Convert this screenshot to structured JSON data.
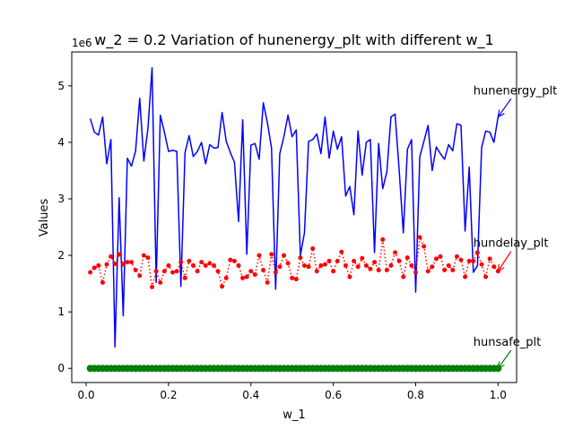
{
  "chart_data": {
    "type": "line",
    "title": "w_2 = 0.2 Variation of hunenergy_plt with different w_1",
    "xlabel": "w_1",
    "ylabel": "Values",
    "scale_label": "1e6",
    "xlim": [
      -0.035,
      1.045
    ],
    "ylim": [
      -0.25,
      5.6
    ],
    "x_ticks": [
      0.0,
      0.2,
      0.4,
      0.6,
      0.8,
      1.0
    ],
    "x_tick_labels": [
      "0.0",
      "0.2",
      "0.4",
      "0.6",
      "0.8",
      "1.0"
    ],
    "y_ticks": [
      0,
      1,
      2,
      3,
      4,
      5
    ],
    "y_tick_labels": [
      "0",
      "1",
      "2",
      "3",
      "4",
      "5"
    ],
    "x": [
      0.01,
      0.02,
      0.03,
      0.04,
      0.05,
      0.06,
      0.07,
      0.08,
      0.09,
      0.1,
      0.11,
      0.12,
      0.13,
      0.14,
      0.15,
      0.16,
      0.17,
      0.18,
      0.19,
      0.2,
      0.21,
      0.22,
      0.23,
      0.24,
      0.25,
      0.26,
      0.27,
      0.28,
      0.29,
      0.3,
      0.31,
      0.32,
      0.33,
      0.34,
      0.35,
      0.36,
      0.37,
      0.38,
      0.39,
      0.4,
      0.41,
      0.42,
      0.43,
      0.44,
      0.45,
      0.46,
      0.47,
      0.48,
      0.49,
      0.5,
      0.51,
      0.52,
      0.53,
      0.54,
      0.55,
      0.56,
      0.57,
      0.58,
      0.59,
      0.6,
      0.61,
      0.62,
      0.63,
      0.64,
      0.65,
      0.66,
      0.67,
      0.68,
      0.69,
      0.7,
      0.71,
      0.72,
      0.73,
      0.74,
      0.75,
      0.76,
      0.77,
      0.78,
      0.79,
      0.8,
      0.81,
      0.82,
      0.83,
      0.84,
      0.85,
      0.86,
      0.87,
      0.88,
      0.89,
      0.9,
      0.91,
      0.92,
      0.93,
      0.94,
      0.95,
      0.96,
      0.97,
      0.98,
      0.99,
      1.0
    ],
    "series": [
      {
        "name": "hunenergy_plt",
        "color": "#0000ff",
        "style": "solid",
        "values": [
          4.42,
          4.18,
          4.13,
          4.45,
          3.62,
          4.05,
          0.38,
          3.02,
          0.93,
          3.72,
          3.58,
          3.85,
          4.78,
          3.67,
          4.25,
          5.32,
          1.52,
          4.48,
          4.18,
          3.84,
          3.86,
          3.84,
          1.45,
          3.82,
          4.12,
          3.75,
          3.84,
          4.0,
          3.62,
          3.96,
          3.9,
          3.91,
          4.53,
          4.02,
          3.82,
          3.65,
          2.6,
          4.4,
          2.02,
          3.95,
          3.98,
          3.7,
          4.7,
          4.35,
          3.9,
          1.4,
          3.8,
          4.1,
          4.48,
          4.1,
          4.22,
          2.0,
          2.4,
          4.02,
          4.05,
          4.15,
          3.8,
          4.45,
          3.72,
          4.2,
          3.88,
          4.1,
          3.05,
          3.22,
          2.72,
          4.2,
          3.42,
          4.0,
          4.05,
          2.05,
          3.98,
          3.18,
          3.48,
          4.45,
          4.5,
          3.5,
          2.4,
          3.88,
          4.05,
          1.35,
          3.75,
          4.02,
          4.3,
          3.5,
          3.92,
          3.8,
          3.7,
          3.96,
          3.85,
          4.33,
          4.3,
          2.43,
          3.56,
          1.7,
          1.82,
          3.9,
          4.2,
          4.18,
          4.0,
          4.45
        ]
      },
      {
        "name": "hundelay_plt",
        "color": "#ff0000",
        "style": "dotted-markers",
        "values": [
          1.7,
          1.78,
          1.82,
          1.52,
          1.84,
          1.98,
          1.85,
          2.02,
          1.84,
          1.88,
          1.88,
          1.74,
          1.64,
          2.0,
          1.96,
          1.44,
          1.72,
          1.52,
          1.72,
          1.82,
          1.7,
          1.72,
          1.88,
          1.6,
          1.9,
          1.82,
          1.72,
          1.88,
          1.82,
          1.86,
          1.82,
          1.72,
          1.45,
          1.6,
          1.92,
          1.9,
          1.82,
          1.6,
          1.62,
          1.72,
          1.66,
          2.0,
          1.74,
          1.52,
          2.02,
          1.7,
          1.8,
          2.0,
          1.86,
          1.6,
          1.58,
          1.96,
          1.82,
          1.8,
          2.12,
          1.72,
          1.82,
          1.84,
          1.9,
          1.72,
          1.9,
          2.06,
          1.82,
          1.62,
          1.9,
          1.8,
          1.95,
          1.82,
          1.76,
          1.88,
          1.74,
          2.28,
          1.74,
          1.82,
          2.05,
          1.9,
          1.62,
          1.96,
          1.82,
          1.7,
          2.32,
          2.16,
          1.72,
          1.8,
          1.94,
          1.98,
          1.74,
          1.82,
          1.74,
          1.98,
          1.92,
          1.62,
          1.9,
          1.9,
          2.05,
          1.84,
          1.62,
          1.94,
          1.8,
          1.72
        ]
      },
      {
        "name": "hunsafe_plt",
        "color": "#008000",
        "style": "solid-markers",
        "values": [
          0,
          0,
          0,
          0,
          0,
          0,
          0,
          0,
          0,
          0,
          0,
          0,
          0,
          0,
          0,
          0,
          0,
          0,
          0,
          0,
          0,
          0,
          0,
          0,
          0,
          0,
          0,
          0,
          0,
          0,
          0,
          0,
          0,
          0,
          0,
          0,
          0,
          0,
          0,
          0,
          0,
          0,
          0,
          0,
          0,
          0,
          0,
          0,
          0,
          0,
          0,
          0,
          0,
          0,
          0,
          0,
          0,
          0,
          0,
          0,
          0,
          0,
          0,
          0,
          0,
          0,
          0,
          0,
          0,
          0,
          0,
          0,
          0,
          0,
          0,
          0,
          0,
          0,
          0,
          0,
          0,
          0,
          0,
          0,
          0,
          0,
          0,
          0,
          0,
          0,
          0,
          0,
          0,
          0,
          0,
          0,
          0,
          0,
          0,
          0
        ]
      }
    ],
    "annotations": [
      {
        "text": "hunenergy_plt",
        "color": "#0000ff",
        "xy": [
          1.0,
          4.45
        ],
        "xytext": [
          0.94,
          4.85
        ]
      },
      {
        "text": "hundelay_plt",
        "color": "#ff0000",
        "xy": [
          1.0,
          1.72
        ],
        "xytext": [
          0.94,
          2.15
        ]
      },
      {
        "text": "hunsafe_plt",
        "color": "#008000",
        "xy": [
          1.0,
          0.0
        ],
        "xytext": [
          0.94,
          0.4
        ]
      }
    ],
    "grid": false,
    "legend": "none"
  }
}
